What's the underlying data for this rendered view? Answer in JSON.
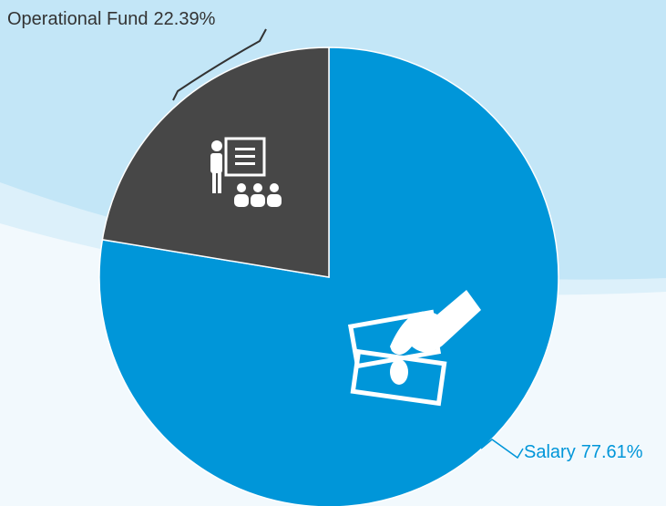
{
  "chart_data": {
    "type": "pie",
    "categories": [
      "Salary",
      "Operational Fund"
    ],
    "values": [
      77.61,
      22.39
    ],
    "value_labels": [
      "77.61%",
      "22.39%"
    ],
    "colors": [
      "#0096d9",
      "#474747"
    ]
  }
}
